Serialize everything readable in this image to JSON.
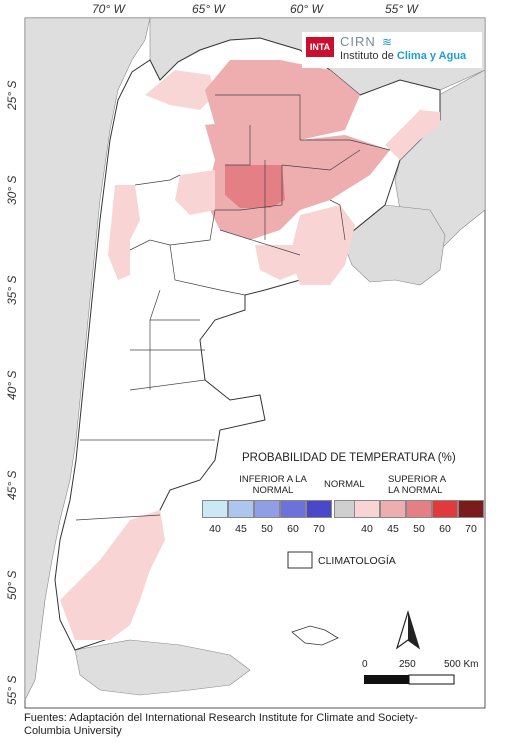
{
  "logo": {
    "inta": "INTA",
    "cirn": "CIRN",
    "institute_prefix": "Instituto de ",
    "institute_highlight": "Clima y Agua"
  },
  "axes": {
    "longitude": [
      "70° W",
      "65° W",
      "60° W",
      "55° W"
    ],
    "latitude": [
      "25° S",
      "30° S",
      "35° S",
      "40° S",
      "45° S",
      "50° S",
      "55° S"
    ]
  },
  "legend": {
    "title": "PROBABILIDAD DE TEMPERATURA (%)",
    "below": "INFERIOR A LA NORMAL",
    "normal": "NORMAL",
    "above": "SUPERIOR A LA NORMAL",
    "below_ticks": [
      "40",
      "45",
      "50",
      "60",
      "70"
    ],
    "above_ticks": [
      "40",
      "45",
      "50",
      "60",
      "70"
    ],
    "below_colors": [
      "#cbe8f5",
      "#aec6ef",
      "#8f9ee6",
      "#6c72dc",
      "#4a48c9"
    ],
    "normal_color": "#cfcfcf",
    "above_colors": [
      "#f8d4d4",
      "#eeaeb0",
      "#e57f86",
      "#e03a3c",
      "#7a1c1c"
    ],
    "climatology": "CLIMATOLOGÍA"
  },
  "scale": {
    "labels": [
      "0",
      "250",
      "500 Km"
    ]
  },
  "footer": "Fuentes: Adaptación del International Research Institute for Climate and Society- Columbia University"
}
